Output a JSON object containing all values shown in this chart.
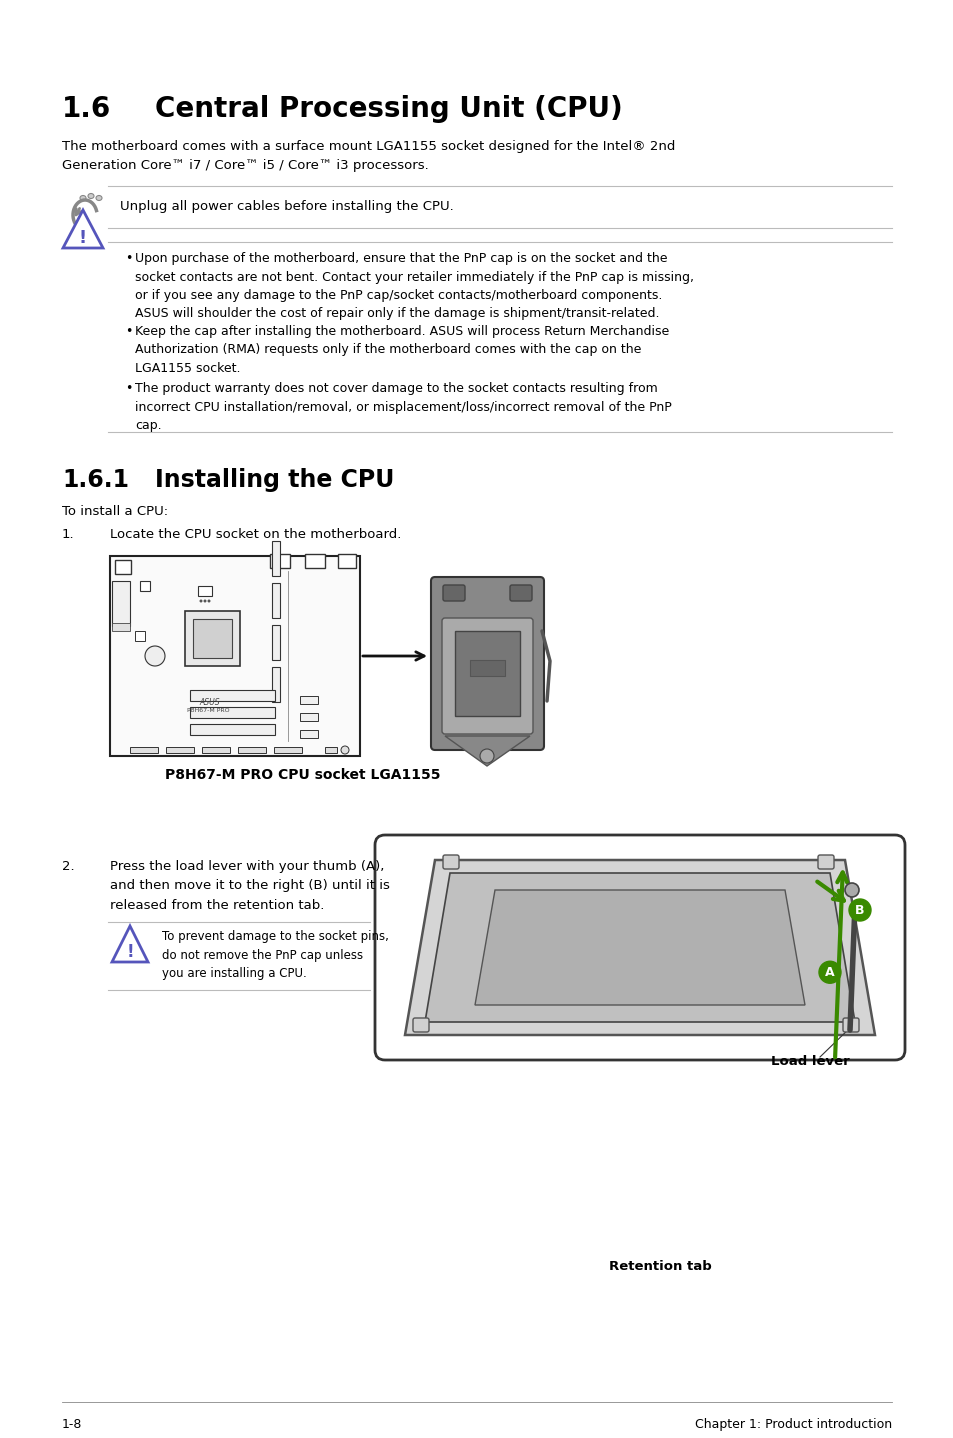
{
  "page_bg": "#ffffff",
  "title_16": "1.6",
  "title_16b": "Central Processing Unit (CPU)",
  "intro_text": "The motherboard comes with a surface mount LGA1155 socket designed for the Intel® 2nd\nGeneration Core™ i7 / Core™ i5 / Core™ i3 processors.",
  "note1_text": "Unplug all power cables before installing the CPU.",
  "bullet1": "Upon purchase of the motherboard, ensure that the PnP cap is on the socket and the\nsocket contacts are not bent. Contact your retailer immediately if the PnP cap is missing,\nor if you see any damage to the PnP cap/socket contacts/motherboard components.\nASUS will shoulder the cost of repair only if the damage is shipment/transit-related.",
  "bullet2": "Keep the cap after installing the motherboard. ASUS will process Return Merchandise\nAuthorization (RMA) requests only if the motherboard comes with the cap on the\nLGA1155 socket.",
  "bullet3": "The product warranty does not cover damage to the socket contacts resulting from\nincorrect CPU installation/removal, or misplacement/loss/incorrect removal of the PnP\ncap.",
  "title_161": "1.6.1",
  "title_161b": "Installing the CPU",
  "install_intro": "To install a CPU:",
  "step1_num": "1.",
  "step1_text": "Locate the CPU socket on the motherboard.",
  "caption1": "P8H67-M PRO CPU socket LGA1155",
  "step2_num": "2.",
  "step2_text": "Press the load lever with your thumb (A),\nand then move it to the right (B) until it is\nreleased from the retention tab.",
  "warning2_text": "To prevent damage to the socket pins,\ndo not remove the PnP cap unless\nyou are installing a CPU.",
  "label_load_lever": "Load lever",
  "label_retention_tab": "Retention tab",
  "footer_left": "1-8",
  "footer_right": "Chapter 1: Product introduction",
  "text_color": "#000000",
  "green_color": "#3a8a00",
  "blue_icon_color": "#5555bb",
  "line_color": "#bbbbbb",
  "icon_gray": "#888888"
}
